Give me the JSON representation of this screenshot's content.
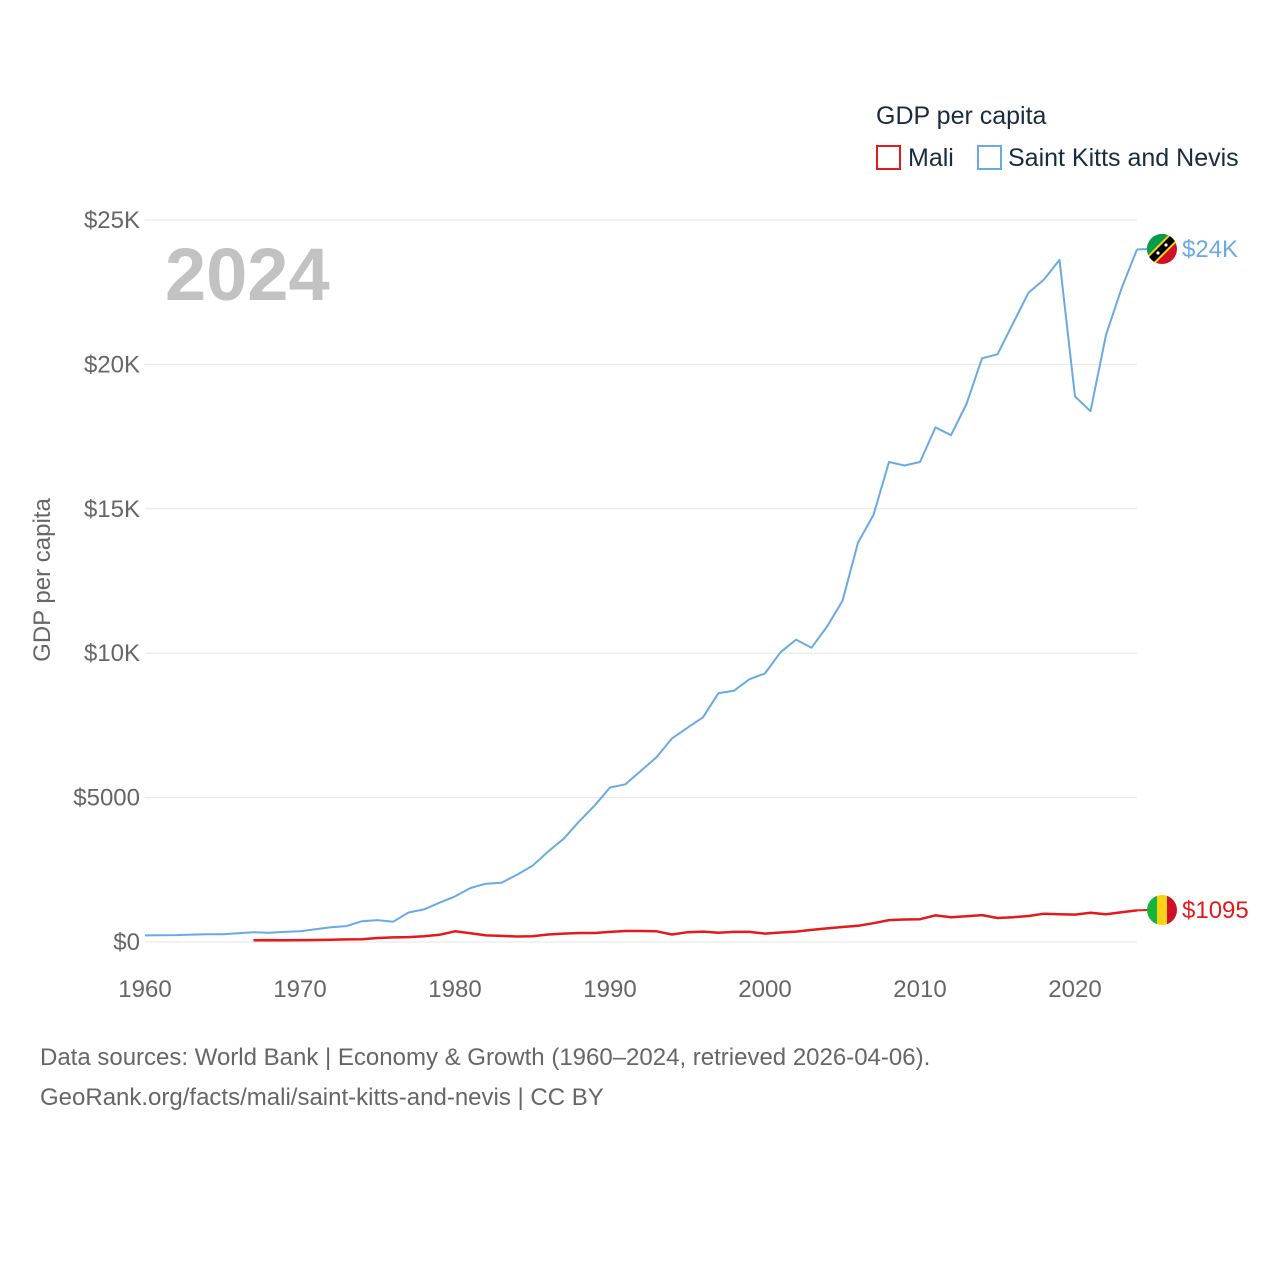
{
  "chart_data": {
    "type": "line",
    "title": "2024",
    "xlabel": "",
    "ylabel": "GDP per capita",
    "xlim": [
      1960,
      2024
    ],
    "ylim": [
      0,
      25000
    ],
    "x_ticks": [
      {
        "value": 1960,
        "label": "1960"
      },
      {
        "value": 1970,
        "label": "1970"
      },
      {
        "value": 1980,
        "label": "1980"
      },
      {
        "value": 1990,
        "label": "1990"
      },
      {
        "value": 2000,
        "label": "2000"
      },
      {
        "value": 2010,
        "label": "2010"
      },
      {
        "value": 2020,
        "label": "2020"
      }
    ],
    "y_ticks": [
      {
        "value": 0,
        "label": "$0"
      },
      {
        "value": 5000,
        "label": "$5000"
      },
      {
        "value": 10000,
        "label": "$10K"
      },
      {
        "value": 15000,
        "label": "$15K"
      },
      {
        "value": 20000,
        "label": "$20K"
      },
      {
        "value": 25000,
        "label": "$25K"
      }
    ],
    "legend": {
      "title": "GDP per capita",
      "position": "top-right"
    },
    "series": [
      {
        "name": "Mali",
        "color": "#e31a1c",
        "end_label": "$1095",
        "flag_colors": [
          "#14b53a",
          "#fcd116",
          "#ce1126"
        ],
        "x": [
          1967,
          1968,
          1969,
          1970,
          1971,
          1972,
          1973,
          1974,
          1975,
          1976,
          1977,
          1978,
          1979,
          1980,
          1981,
          1982,
          1983,
          1984,
          1985,
          1986,
          1987,
          1988,
          1989,
          1990,
          1991,
          1992,
          1993,
          1994,
          1995,
          1996,
          1997,
          1998,
          1999,
          2000,
          2001,
          2002,
          2003,
          2004,
          2005,
          2006,
          2007,
          2008,
          2009,
          2010,
          2011,
          2012,
          2013,
          2014,
          2015,
          2016,
          2017,
          2018,
          2019,
          2020,
          2021,
          2022,
          2023,
          2024
        ],
        "y": [
          60,
          65,
          60,
          65,
          70,
          80,
          90,
          95,
          140,
          160,
          170,
          200,
          250,
          370,
          300,
          230,
          210,
          190,
          200,
          260,
          290,
          310,
          310,
          350,
          380,
          380,
          370,
          260,
          340,
          360,
          320,
          350,
          350,
          290,
          330,
          360,
          420,
          470,
          520,
          560,
          650,
          760,
          780,
          790,
          920,
          860,
          890,
          930,
          830,
          860,
          900,
          980,
          960,
          950,
          1010,
          960,
          1030,
          1095
        ]
      },
      {
        "name": "Saint Kitts and Nevis",
        "color": "#6aaae4",
        "end_label": "$24K",
        "flag_colors": [
          "#009e49",
          "#ce1126",
          "#fcd116",
          "#000000"
        ],
        "x": [
          1960,
          1961,
          1962,
          1963,
          1964,
          1965,
          1966,
          1967,
          1968,
          1969,
          1970,
          1971,
          1972,
          1973,
          1974,
          1975,
          1976,
          1977,
          1978,
          1979,
          1980,
          1981,
          1982,
          1983,
          1984,
          1985,
          1986,
          1987,
          1988,
          1989,
          1990,
          1991,
          1992,
          1993,
          1994,
          1995,
          1996,
          1997,
          1998,
          1999,
          2000,
          2001,
          2002,
          2003,
          2004,
          2005,
          2006,
          2007,
          2008,
          2009,
          2010,
          2011,
          2012,
          2013,
          2014,
          2015,
          2016,
          2017,
          2018,
          2019,
          2020,
          2021,
          2022,
          2023,
          2024
        ],
        "y": [
          230,
          235,
          240,
          255,
          265,
          270,
          300,
          340,
          320,
          350,
          370,
          440,
          510,
          550,
          720,
          760,
          700,
          1020,
          1130,
          1360,
          1580,
          1870,
          2020,
          2050,
          2330,
          2640,
          3130,
          3570,
          4170,
          4720,
          5350,
          5460,
          5930,
          6400,
          7050,
          7420,
          7780,
          8620,
          8700,
          9100,
          9300,
          10030,
          10470,
          10190,
          10920,
          11810,
          13830,
          14790,
          16620,
          16500,
          16620,
          17820,
          17550,
          18630,
          20210,
          20350,
          21420,
          22480,
          22940,
          23620,
          18890,
          18380,
          21020,
          22630,
          23980
        ]
      }
    ]
  },
  "footer": {
    "line1": "Data sources: World Bank | Economy & Growth (1960–2024, retrieved 2026-04-06).",
    "line2": "GeoRank.org/facts/mali/saint-kitts-and-nevis | CC BY"
  }
}
